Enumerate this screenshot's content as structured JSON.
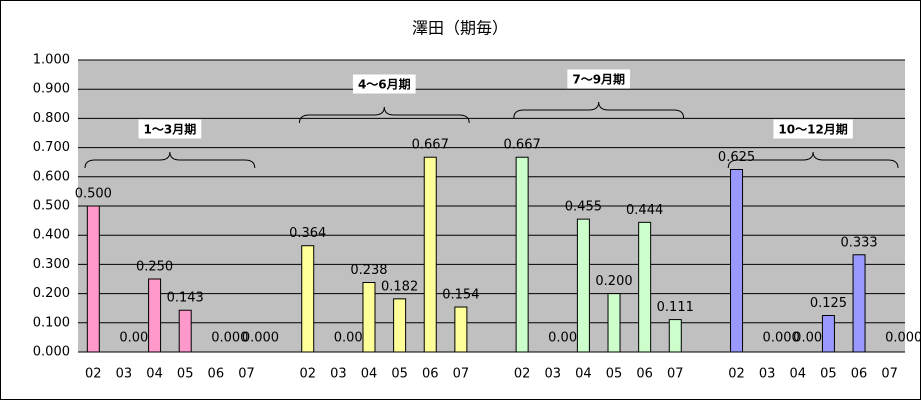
{
  "chart_data": {
    "type": "bar",
    "title": "澤田（期毎）",
    "categories": [
      "02",
      "03",
      "04",
      "05",
      "06",
      "07"
    ],
    "series": [
      {
        "name": "1～3月期",
        "color": "#ff99cc",
        "values": [
          0.5,
          0,
          0.25,
          0.143,
          0,
          0
        ],
        "value_labels": [
          "0.500",
          "0.000",
          "0.250",
          "0.143",
          "0.000",
          "0.000"
        ]
      },
      {
        "name": "4～6月期",
        "color": "#ffff99",
        "values": [
          0.364,
          0,
          0.238,
          0.182,
          0.667,
          0.154
        ],
        "value_labels": [
          "0.364",
          "0.000",
          "0.238",
          "0.182",
          "0.667",
          "0.154"
        ]
      },
      {
        "name": "7～9月期",
        "color": "#ccffcc",
        "values": [
          0.667,
          0,
          0.455,
          0.2,
          0.444,
          0.111
        ],
        "value_labels": [
          "0.667",
          "0.000",
          "0.455",
          "0.200",
          "0.444",
          "0.111"
        ]
      },
      {
        "name": "10～12月期",
        "color": "#9999ff",
        "values": [
          0.625,
          0,
          0,
          0.125,
          0.333,
          0
        ],
        "value_labels": [
          "0.625",
          "0.000",
          "0.000",
          "0.125",
          "0.333",
          "0.000"
        ]
      }
    ],
    "ylim": [
      0,
      1
    ],
    "yticks": [
      {
        "value": 0,
        "label": "0.000"
      },
      {
        "value": 0.1,
        "label": "0.100"
      },
      {
        "value": 0.2,
        "label": "0.200"
      },
      {
        "value": 0.3,
        "label": "0.300"
      },
      {
        "value": 0.4,
        "label": "0.400"
      },
      {
        "value": 0.5,
        "label": "0.500"
      },
      {
        "value": 0.6,
        "label": "0.600"
      },
      {
        "value": 0.7,
        "label": "0.700"
      },
      {
        "value": 0.8,
        "label": "0.800"
      },
      {
        "value": 0.9,
        "label": "0.900"
      },
      {
        "value": 1,
        "label": "1.000"
      }
    ],
    "grid": true
  }
}
